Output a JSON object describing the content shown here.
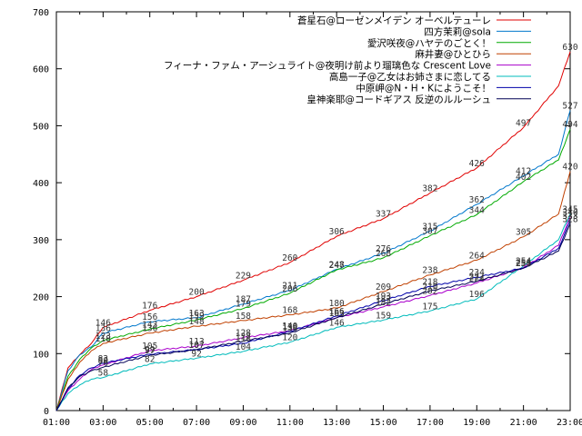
{
  "chart_data": {
    "type": "line",
    "xlabel": "",
    "ylabel": "",
    "ylim": [
      0,
      700
    ],
    "x_ticks": [
      "01:00",
      "03:00",
      "05:00",
      "07:00",
      "09:00",
      "11:00",
      "13:00",
      "15:00",
      "17:00",
      "19:00",
      "21:00",
      "23:00"
    ],
    "y_ticks": [
      0,
      100,
      200,
      300,
      400,
      500,
      600,
      700
    ],
    "grid": false,
    "legend_position": "top-right",
    "series": [
      {
        "name": "蒼星石@ローゼンメイデン オーベルテューレ",
        "color": "#e00000",
        "points": [
          [
            0,
            0
          ],
          [
            0.5,
            75
          ],
          [
            1,
            98
          ],
          [
            1.5,
            118
          ],
          [
            2,
            146
          ],
          [
            4,
            176
          ],
          [
            6,
            200
          ],
          [
            8,
            229
          ],
          [
            10,
            260
          ],
          [
            12,
            306
          ],
          [
            14,
            337
          ],
          [
            16,
            382
          ],
          [
            18,
            426
          ],
          [
            20,
            497
          ],
          [
            21.5,
            570
          ],
          [
            22,
            630
          ]
        ],
        "labels": [
          [
            2,
            146
          ],
          [
            4,
            176
          ],
          [
            6,
            200
          ],
          [
            8,
            229
          ],
          [
            10,
            260
          ],
          [
            12,
            306
          ],
          [
            14,
            337
          ],
          [
            16,
            382
          ],
          [
            18,
            426
          ],
          [
            20,
            497
          ],
          [
            22,
            630
          ]
        ]
      },
      {
        "name": "四方茉莉@sola",
        "color": "#0077cc",
        "points": [
          [
            0,
            0
          ],
          [
            0.5,
            70
          ],
          [
            1,
            98
          ],
          [
            1.5,
            112
          ],
          [
            2,
            136
          ],
          [
            4,
            156
          ],
          [
            6,
            163
          ],
          [
            8,
            187
          ],
          [
            10,
            211
          ],
          [
            12,
            248
          ],
          [
            14,
            276
          ],
          [
            16,
            315
          ],
          [
            18,
            362
          ],
          [
            20,
            412
          ],
          [
            21.5,
            450
          ],
          [
            22,
            527
          ]
        ],
        "labels": [
          [
            2,
            136
          ],
          [
            4,
            156
          ],
          [
            6,
            163
          ],
          [
            8,
            187
          ],
          [
            10,
            211
          ],
          [
            12,
            248
          ],
          [
            14,
            276
          ],
          [
            16,
            315
          ],
          [
            18,
            362
          ],
          [
            20,
            412
          ],
          [
            22,
            527
          ]
        ]
      },
      {
        "name": "愛沢咲夜@ハヤテのごとく！",
        "color": "#00aa00",
        "points": [
          [
            0,
            0
          ],
          [
            0.5,
            60
          ],
          [
            1,
            90
          ],
          [
            1.5,
            110
          ],
          [
            2,
            123
          ],
          [
            4,
            143
          ],
          [
            6,
            159
          ],
          [
            8,
            179
          ],
          [
            10,
            206
          ],
          [
            12,
            247
          ],
          [
            14,
            268
          ],
          [
            16,
            307
          ],
          [
            18,
            344
          ],
          [
            20,
            402
          ],
          [
            21.5,
            440
          ],
          [
            22,
            494
          ]
        ],
        "labels": [
          [
            2,
            123
          ],
          [
            4,
            143
          ],
          [
            6,
            159
          ],
          [
            8,
            179
          ],
          [
            10,
            206
          ],
          [
            12,
            247
          ],
          [
            14,
            268
          ],
          [
            16,
            307
          ],
          [
            18,
            344
          ],
          [
            20,
            402
          ],
          [
            22,
            494
          ]
        ]
      },
      {
        "name": "麻井妻@ひとひら",
        "color": "#c04000",
        "points": [
          [
            0,
            0
          ],
          [
            0.5,
            55
          ],
          [
            1,
            85
          ],
          [
            1.5,
            105
          ],
          [
            2,
            118
          ],
          [
            4,
            136
          ],
          [
            6,
            148
          ],
          [
            8,
            158
          ],
          [
            10,
            168
          ],
          [
            12,
            180
          ],
          [
            14,
            209
          ],
          [
            16,
            238
          ],
          [
            18,
            264
          ],
          [
            20,
            305
          ],
          [
            21.5,
            345
          ],
          [
            22,
            420
          ]
        ],
        "labels": [
          [
            2,
            118
          ],
          [
            4,
            136
          ],
          [
            6,
            148
          ],
          [
            8,
            158
          ],
          [
            10,
            168
          ],
          [
            12,
            180
          ],
          [
            14,
            209
          ],
          [
            16,
            238
          ],
          [
            18,
            264
          ],
          [
            20,
            305
          ],
          [
            22,
            420
          ]
        ]
      },
      {
        "name": "フィーナ・ファム・アーシュライト@夜明け前より瑠璃色な Crescent Love",
        "color": "#aa00cc",
        "points": [
          [
            0,
            0
          ],
          [
            0.5,
            35
          ],
          [
            1,
            55
          ],
          [
            1.5,
            72
          ],
          [
            2,
            80
          ],
          [
            4,
            105
          ],
          [
            6,
            113
          ],
          [
            8,
            128
          ],
          [
            10,
            140
          ],
          [
            12,
            163
          ],
          [
            14,
            182
          ],
          [
            16,
            202
          ],
          [
            18,
            224
          ],
          [
            20,
            251
          ],
          [
            21.5,
            290
          ],
          [
            22,
            340
          ]
        ],
        "labels": [
          [
            2,
            80
          ],
          [
            4,
            105
          ],
          [
            6,
            113
          ],
          [
            8,
            128
          ],
          [
            10,
            140
          ],
          [
            12,
            163
          ],
          [
            14,
            182
          ],
          [
            16,
            202
          ],
          [
            18,
            224
          ],
          [
            20,
            251
          ],
          [
            22,
            340
          ]
        ]
      },
      {
        "name": "高島一子@乙女はお姉さまに恋してる",
        "color": "#00bbbb",
        "points": [
          [
            0,
            0
          ],
          [
            0.5,
            30
          ],
          [
            1,
            45
          ],
          [
            1.5,
            55
          ],
          [
            2,
            58
          ],
          [
            4,
            82
          ],
          [
            6,
            92
          ],
          [
            8,
            104
          ],
          [
            10,
            120
          ],
          [
            12,
            146
          ],
          [
            14,
            159
          ],
          [
            16,
            175
          ],
          [
            18,
            196
          ],
          [
            20,
            254
          ],
          [
            21.5,
            300
          ],
          [
            22,
            345
          ]
        ],
        "labels": [
          [
            2,
            58
          ],
          [
            4,
            82
          ],
          [
            6,
            92
          ],
          [
            8,
            104
          ],
          [
            10,
            120
          ],
          [
            12,
            146
          ],
          [
            14,
            159
          ],
          [
            16,
            175
          ],
          [
            18,
            196
          ],
          [
            20,
            254
          ],
          [
            22,
            345
          ]
        ]
      },
      {
        "name": "中原岬@N・H・Kにようこそ！",
        "color": "#0000aa",
        "points": [
          [
            0,
            0
          ],
          [
            0.5,
            38
          ],
          [
            1,
            62
          ],
          [
            1.5,
            75
          ],
          [
            2,
            83
          ],
          [
            4,
            99
          ],
          [
            6,
            107
          ],
          [
            8,
            118
          ],
          [
            10,
            139
          ],
          [
            12,
            166
          ],
          [
            14,
            193
          ],
          [
            16,
            218
          ],
          [
            18,
            234
          ],
          [
            20,
            250
          ],
          [
            21.5,
            285
          ],
          [
            22,
            333
          ]
        ],
        "labels": [
          [
            2,
            83
          ],
          [
            4,
            99
          ],
          [
            6,
            107
          ],
          [
            8,
            118
          ],
          [
            10,
            139
          ],
          [
            12,
            166
          ],
          [
            14,
            193
          ],
          [
            16,
            218
          ],
          [
            18,
            234
          ],
          [
            20,
            250
          ],
          [
            22,
            333
          ]
        ]
      },
      {
        "name": "皇神楽耶@コードギアス 反逆のルルーシュ",
        "color": "#000055",
        "points": [
          [
            0,
            0
          ],
          [
            0.5,
            40
          ],
          [
            1,
            60
          ],
          [
            1.5,
            70
          ],
          [
            2,
            76
          ],
          [
            4,
            97
          ],
          [
            6,
            107
          ],
          [
            8,
            122
          ],
          [
            10,
            136
          ],
          [
            12,
            163
          ],
          [
            14,
            187
          ],
          [
            16,
            210
          ],
          [
            18,
            227
          ],
          [
            20,
            250
          ],
          [
            21.5,
            280
          ],
          [
            22,
            328
          ]
        ],
        "labels": [
          [
            2,
            76
          ],
          [
            4,
            97
          ],
          [
            6,
            107
          ],
          [
            8,
            122
          ],
          [
            10,
            136
          ],
          [
            12,
            163
          ],
          [
            14,
            187
          ],
          [
            16,
            210
          ],
          [
            18,
            227
          ],
          [
            20,
            250
          ],
          [
            22,
            328
          ]
        ]
      }
    ]
  }
}
